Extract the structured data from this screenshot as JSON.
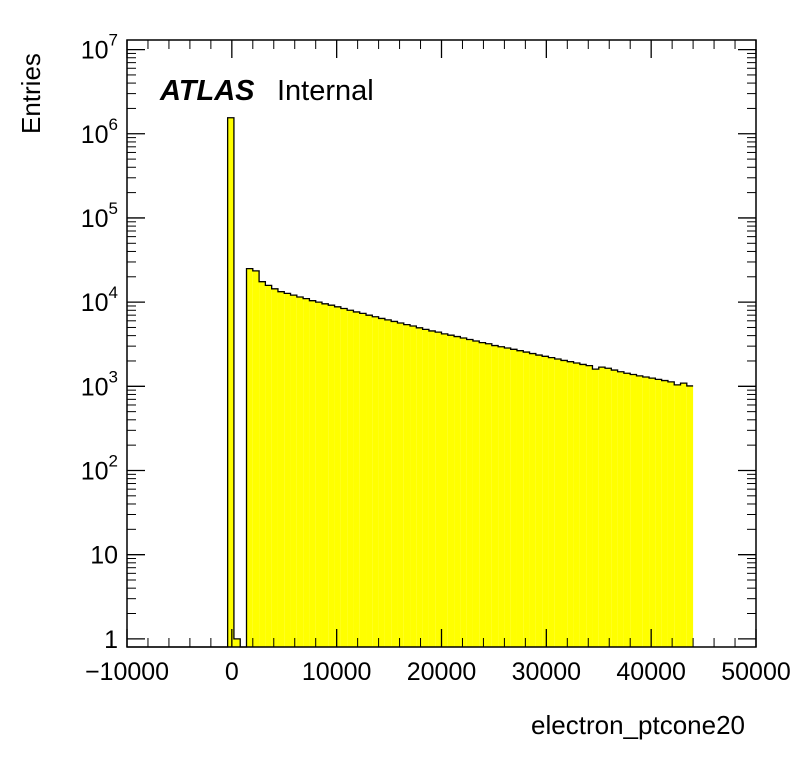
{
  "chart_data": {
    "type": "bar",
    "xlabel": "electron_ptcone20",
    "ylabel": "Entries",
    "xlim": [
      -10000,
      50000
    ],
    "ylim": [
      0.8,
      13000000
    ],
    "y_scale": "log",
    "x_tick_labels": [
      "−10000",
      "0",
      "10000",
      "20000",
      "30000",
      "40000",
      "50000"
    ],
    "y_tick_labels": [
      {
        "value": 1,
        "base": "1",
        "exp": ""
      },
      {
        "value": 10,
        "base": "10",
        "exp": ""
      },
      {
        "value": 100,
        "base": "10",
        "exp": "2"
      },
      {
        "value": 1000,
        "base": "10",
        "exp": "3"
      },
      {
        "value": 10000,
        "base": "10",
        "exp": "4"
      },
      {
        "value": 100000,
        "base": "10",
        "exp": "5"
      },
      {
        "value": 1000000,
        "base": "10",
        "exp": "6"
      },
      {
        "value": 10000000,
        "base": "10",
        "exp": "7"
      }
    ],
    "annotation": {
      "bold": "ATLAS",
      "rest": "Internal"
    },
    "fill_color": "#ffff00",
    "line_color": "#000000",
    "bin_width": 600,
    "bin_edges_start": -10000,
    "bin_values": [
      0,
      0,
      0,
      0,
      0,
      0,
      0,
      0,
      0,
      0,
      0,
      0,
      0,
      0,
      0,
      0,
      1550000,
      1,
      0,
      25000,
      23500,
      17500,
      15800,
      14400,
      13300,
      12700,
      12100,
      11500,
      11000,
      10400,
      10000,
      9550,
      9200,
      8800,
      8400,
      8000,
      7650,
      7350,
      7000,
      6700,
      6400,
      6150,
      5900,
      5650,
      5400,
      5200,
      4950,
      4750,
      4550,
      4400,
      4200,
      4050,
      3900,
      3750,
      3600,
      3450,
      3300,
      3200,
      3050,
      2950,
      2850,
      2750,
      2650,
      2550,
      2450,
      2350,
      2270,
      2190,
      2110,
      2030,
      1960,
      1890,
      1820,
      1760,
      1600,
      1690,
      1640,
      1560,
      1490,
      1430,
      1380,
      1330,
      1290,
      1250,
      1210,
      1170,
      1130,
      1040,
      1090,
      1010
    ]
  }
}
